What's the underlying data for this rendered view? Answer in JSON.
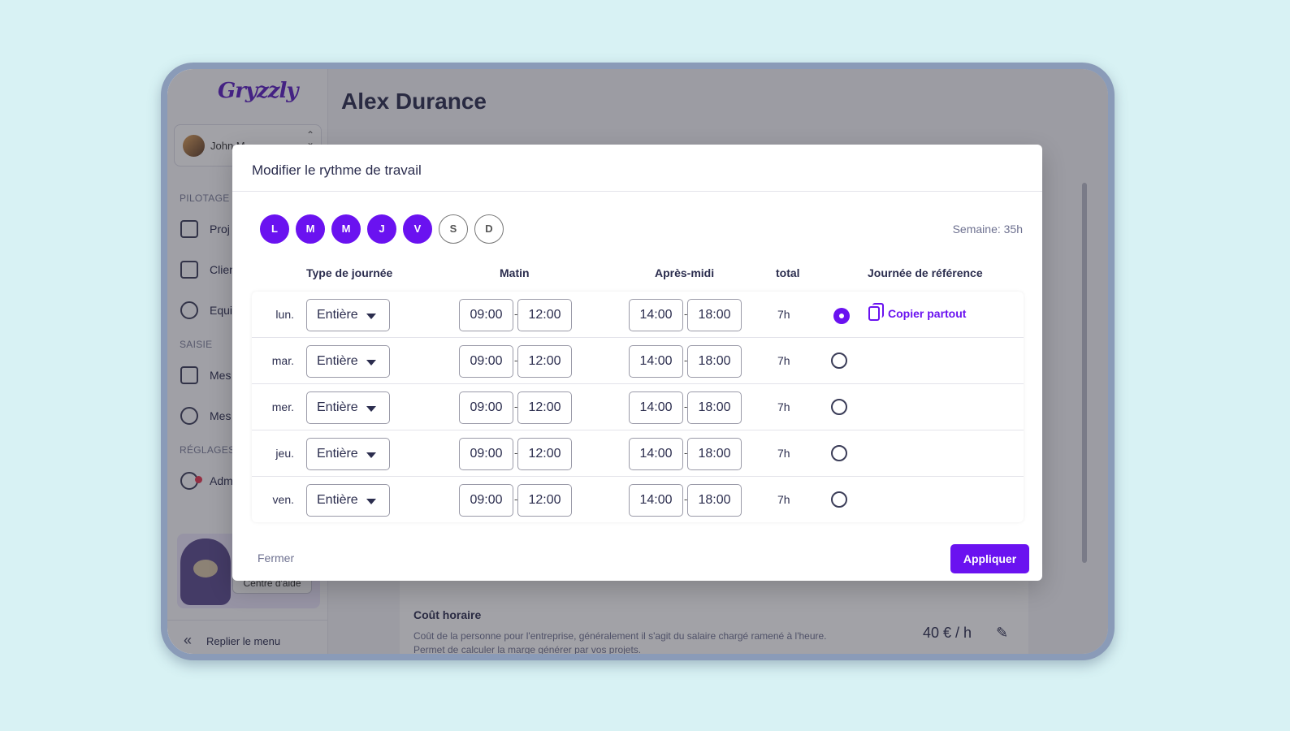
{
  "app": {
    "logo_text": "Gryzzly",
    "page_title": "Alex Durance"
  },
  "sidebar": {
    "user_name": "John M",
    "sections": [
      "PILOTAGE",
      "SAISIE",
      "RÉGLAGES"
    ],
    "items": [
      {
        "label": "Proj",
        "icon": "briefcase-icon"
      },
      {
        "label": "Clien",
        "icon": "contact-card-icon"
      },
      {
        "label": "Equi",
        "icon": "team-icon"
      },
      {
        "label": "Mes",
        "icon": "calendar-icon"
      },
      {
        "label": "Mes",
        "icon": "traveler-icon"
      },
      {
        "label": "Adm",
        "icon": "gear-icon"
      }
    ],
    "help_button": "Centre d'aide",
    "collapse_label": "Replier le menu"
  },
  "background_card": {
    "title": "Coût horaire",
    "description": "Coût de la personne pour l'entreprise, généralement il s'agit du salaire chargé ramené à l'heure. Permet de calculer la marge générer par vos projets.",
    "value": "40 € / h"
  },
  "modal": {
    "title": "Modifier le rythme de travail",
    "days": [
      {
        "letter": "L",
        "active": true
      },
      {
        "letter": "M",
        "active": true
      },
      {
        "letter": "M",
        "active": true
      },
      {
        "letter": "J",
        "active": true
      },
      {
        "letter": "V",
        "active": true
      },
      {
        "letter": "S",
        "active": false
      },
      {
        "letter": "D",
        "active": false
      }
    ],
    "week_total": "Semaine: 35h",
    "headers": {
      "type": "Type de journée",
      "morning": "Matin",
      "afternoon": "Après-midi",
      "total": "total",
      "reference": "Journée de référence"
    },
    "rows": [
      {
        "day": "lun.",
        "type": "Entière",
        "m_start": "09:00",
        "m_end": "12:00",
        "a_start": "14:00",
        "a_end": "18:00",
        "total": "7h",
        "reference": true
      },
      {
        "day": "mar.",
        "type": "Entière",
        "m_start": "09:00",
        "m_end": "12:00",
        "a_start": "14:00",
        "a_end": "18:00",
        "total": "7h",
        "reference": false
      },
      {
        "day": "mer.",
        "type": "Entière",
        "m_start": "09:00",
        "m_end": "12:00",
        "a_start": "14:00",
        "a_end": "18:00",
        "total": "7h",
        "reference": false
      },
      {
        "day": "jeu.",
        "type": "Entière",
        "m_start": "09:00",
        "m_end": "12:00",
        "a_start": "14:00",
        "a_end": "18:00",
        "total": "7h",
        "reference": false
      },
      {
        "day": "ven.",
        "type": "Entière",
        "m_start": "09:00",
        "m_end": "12:00",
        "a_start": "14:00",
        "a_end": "18:00",
        "total": "7h",
        "reference": false
      }
    ],
    "copy_label": "Copier partout",
    "time_separator": "-",
    "close_label": "Fermer",
    "apply_label": "Appliquer"
  },
  "colors": {
    "accent": "#6a12f0",
    "background": "#d8f2f4",
    "device_frame": "#8a9bb8"
  }
}
